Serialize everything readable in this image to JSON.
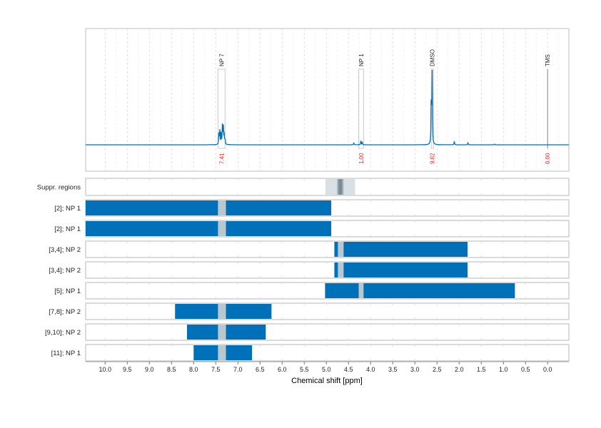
{
  "chart_data": {
    "type": "line",
    "xlabel": "Chemical shift [ppm]",
    "xlim": [
      10.44,
      -0.48
    ],
    "x_reversed": true,
    "grid": true,
    "xticks": [
      "10.0",
      "9.5",
      "9.0",
      "8.5",
      "8.0",
      "7.5",
      "7.0",
      "6.5",
      "6.0",
      "5.5",
      "5.0",
      "4.5",
      "4.0",
      "3.5",
      "3.0",
      "2.5",
      "2.0",
      "1.5",
      "1.0",
      "0.5",
      "0.0"
    ],
    "colors": {
      "spectrum": "#0070b8",
      "bar": "#0070b8",
      "gap": "#b9c7cf",
      "integral": "#ff2020",
      "box": "#c8c8c8",
      "supp_light": "#d8e0e6",
      "supp_dark": "#7b8c97"
    },
    "spectrum_peaks": [
      {
        "ppm": 7.43,
        "height": 0.16
      },
      {
        "ppm": 7.41,
        "height": 0.22
      },
      {
        "ppm": 7.38,
        "height": 0.2
      },
      {
        "ppm": 7.35,
        "height": 0.26
      },
      {
        "ppm": 7.33,
        "height": 0.3
      },
      {
        "ppm": 7.31,
        "height": 0.14
      },
      {
        "ppm": 7.29,
        "height": 0.08
      },
      {
        "ppm": 4.38,
        "height": 0.03
      },
      {
        "ppm": 4.22,
        "height": 0.06
      },
      {
        "ppm": 4.19,
        "height": 0.04
      },
      {
        "ppm": 2.61,
        "height": 1.0
      },
      {
        "ppm": 2.63,
        "height": 0.7
      },
      {
        "ppm": 2.11,
        "height": 0.05
      },
      {
        "ppm": 1.8,
        "height": 0.03
      },
      {
        "ppm": 1.2,
        "height": 0.01
      }
    ],
    "annotations": [
      {
        "label": "NP 7",
        "ppm_range": [
          7.45,
          7.29
        ],
        "integral": "7.41"
      },
      {
        "label": "NP 1",
        "ppm_range": [
          4.27,
          4.16
        ],
        "integral": "1.00"
      },
      {
        "label": "DMSO",
        "ppm_range": [
          2.63,
          2.59
        ],
        "integral": "9.82"
      },
      {
        "label": "TMS",
        "ppm_range": [
          0.0,
          0.0
        ],
        "integral": "0.00"
      }
    ],
    "suppression": {
      "label": "Suppr. regions",
      "outer": [
        5.02,
        4.35
      ],
      "inner": [
        4.76,
        4.61
      ]
    },
    "rows": [
      {
        "label": "[2]; NP 1",
        "range": [
          10.44,
          4.89
        ],
        "gap": [
          7.45,
          7.27
        ]
      },
      {
        "label": "[2]; NP 1",
        "range": [
          10.44,
          4.89
        ],
        "gap": [
          7.45,
          7.27
        ]
      },
      {
        "label": "[3,4]; NP 2",
        "range": [
          4.82,
          1.81
        ],
        "gap": [
          4.74,
          4.61
        ]
      },
      {
        "label": "[3,4]; NP 2",
        "range": [
          4.82,
          1.81
        ],
        "gap": [
          4.74,
          4.61
        ]
      },
      {
        "label": "[5]; NP 1",
        "range": [
          5.03,
          0.74
        ],
        "gap": [
          4.27,
          4.16
        ]
      },
      {
        "label": "[7,8]; NP 2",
        "range": [
          8.42,
          6.24
        ],
        "gap": [
          7.45,
          7.27
        ]
      },
      {
        "label": "[9,10]; NP 2",
        "range": [
          8.15,
          6.37
        ],
        "gap": [
          7.45,
          7.27
        ]
      },
      {
        "label": "[11]; NP 1",
        "range": [
          8.0,
          6.68
        ],
        "gap": [
          7.45,
          7.27
        ]
      }
    ]
  }
}
